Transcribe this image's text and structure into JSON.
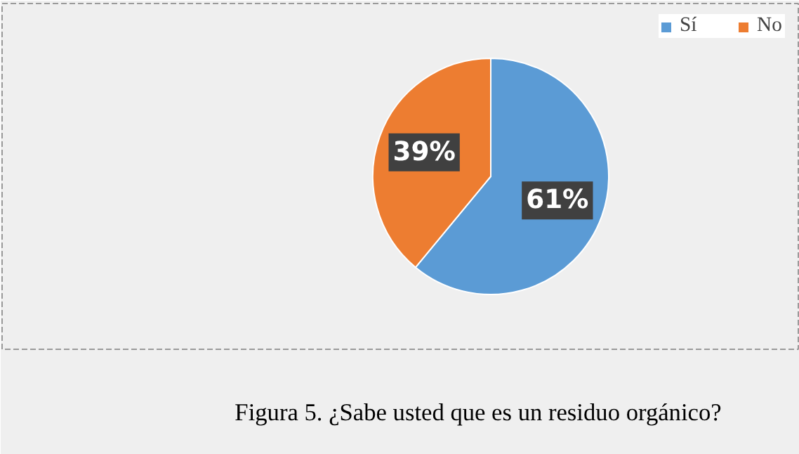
{
  "chart_data": {
    "type": "pie",
    "categories": [
      "Sí",
      "No"
    ],
    "values": [
      61,
      39
    ],
    "colors": [
      "#5b9bd5",
      "#ed7d31"
    ],
    "value_labels": [
      "61%",
      "39%"
    ],
    "legend": "top right",
    "annotations": [
      "Figura 5. ¿Sabe usted que es un residuo orgánico?"
    ]
  }
}
